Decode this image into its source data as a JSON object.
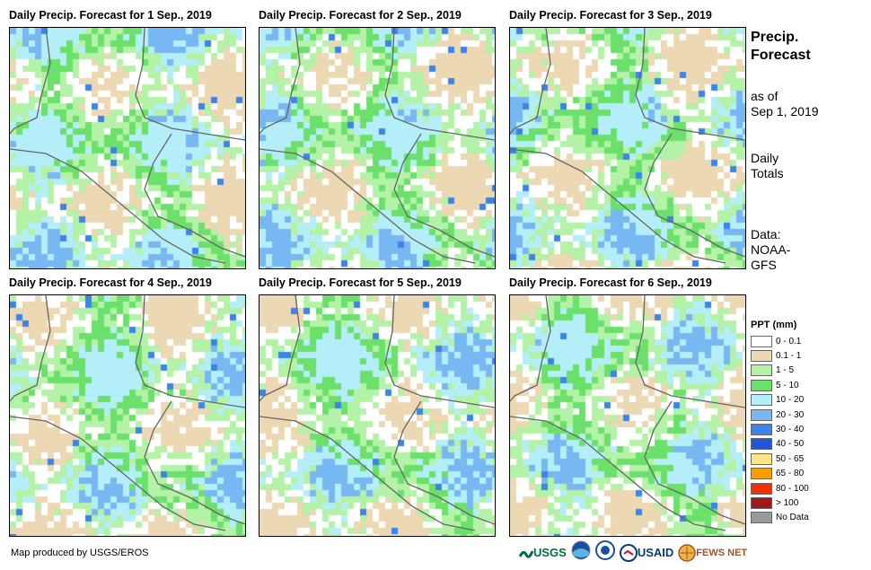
{
  "panels": [
    {
      "title": "Daily Precip. Forecast for 1 Sep., 2019"
    },
    {
      "title": "Daily Precip. Forecast for 2 Sep., 2019"
    },
    {
      "title": "Daily Precip. Forecast for 3 Sep., 2019"
    },
    {
      "title": "Daily Precip. Forecast for 4 Sep., 2019"
    },
    {
      "title": "Daily Precip. Forecast for 5 Sep., 2019"
    },
    {
      "title": "Daily Precip. Forecast for 6 Sep., 2019"
    }
  ],
  "side": {
    "title_line1": "Precip.",
    "title_line2": "Forecast",
    "asof_line1": "as of",
    "asof_line2": "Sep 1, 2019",
    "totals_line1": "Daily",
    "totals_line2": "Totals",
    "data_line1": "Data:",
    "data_line2": "NOAA-",
    "data_line3": "GFS"
  },
  "legend": {
    "title": "PPT (mm)",
    "items": [
      {
        "label": "0 - 0.1",
        "color": "#ffffff"
      },
      {
        "label": "0.1 - 1",
        "color": "#ecd8b2"
      },
      {
        "label": "1 - 5",
        "color": "#b3f2a7"
      },
      {
        "label": "5 - 10",
        "color": "#6be06a"
      },
      {
        "label": "10 - 20",
        "color": "#b4eef8"
      },
      {
        "label": "20 - 30",
        "color": "#78b8f2"
      },
      {
        "label": "30 - 40",
        "color": "#3c84ea"
      },
      {
        "label": "40 - 50",
        "color": "#1e56de"
      },
      {
        "label": "50 - 65",
        "color": "#fde68a"
      },
      {
        "label": "65 - 80",
        "color": "#f5a000"
      },
      {
        "label": "80 - 100",
        "color": "#f03000"
      },
      {
        "label": "> 100",
        "color": "#a01818"
      },
      {
        "label": "No Data",
        "color": "#999999"
      }
    ]
  },
  "credit": "Map produced by USGS/EROS",
  "logos": {
    "usgs": "USGS",
    "usaid": "USAID",
    "fews": "FEWS NET"
  }
}
